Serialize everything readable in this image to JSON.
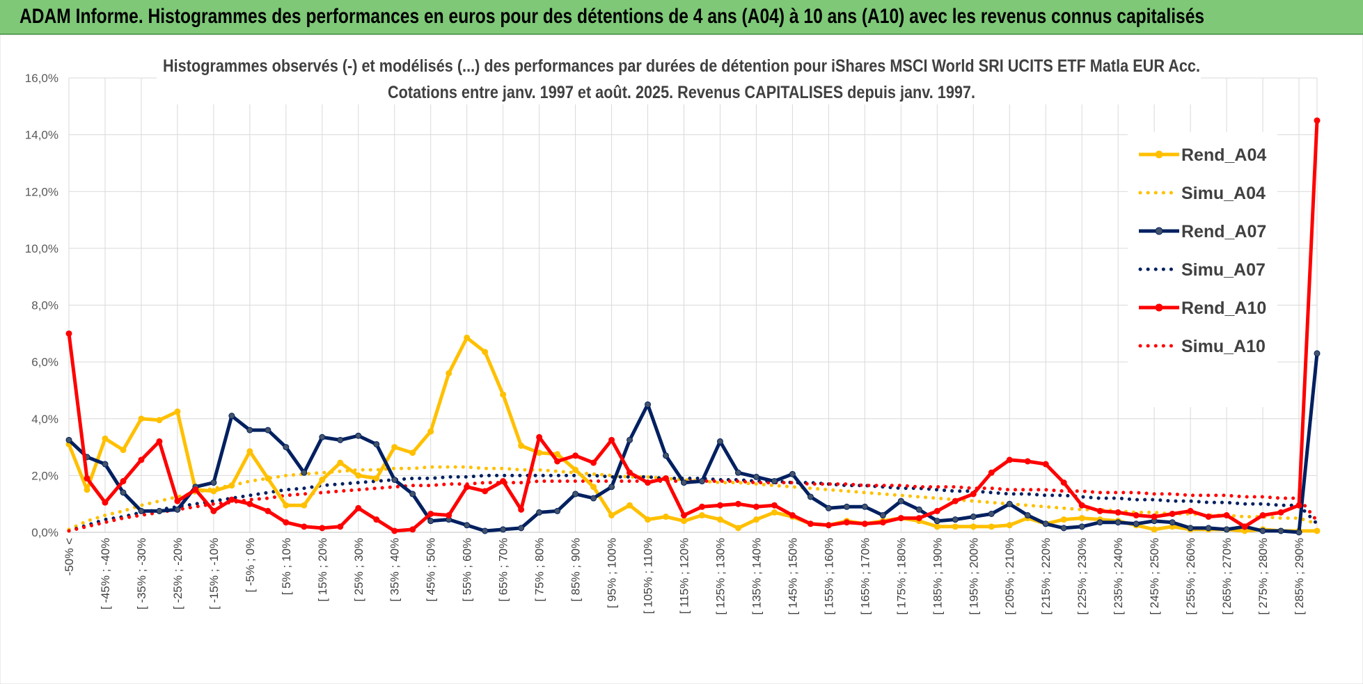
{
  "banner": {
    "title": "ADAM Informe. Histogrammes des performances en euros pour des détentions de 4 ans (A04) à 10 ans (A10) avec les revenus connus capitalisés"
  },
  "colors": {
    "banner": "#7ec878",
    "A04": "#ffc000",
    "A07": "#002060",
    "A10": "#ff0000",
    "grid": "#d9d9d9"
  },
  "chart_data": {
    "type": "line",
    "title": "Histogrammes observés (-) et modélisés (...) des performances par durées de détention pour iShares MSCI World SRI UCITS ETF Matla EUR Acc.",
    "subtitle": "Cotations entre janv. 1997 et août. 2025. Revenus CAPITALISES depuis janv. 1997.",
    "ylim": [
      0,
      16
    ],
    "yticks": [
      "0,0%",
      "2,0%",
      "4,0%",
      "6,0%",
      "8,0%",
      "10,0%",
      "12,0%",
      "14,0%",
      "16,0%"
    ],
    "grid": true,
    "legend_position": "right",
    "x_labels": [
      "-50% <",
      "[ -45% ; -40%",
      "[ -35% ; -30%",
      "[ -25% ; -20%",
      "[ -15% ; -10%",
      "[ -5% ; 0%",
      "[ 5% ; 10%",
      "[ 15% ; 20%",
      "[ 25% ; 30%",
      "[ 35% ; 40%",
      "[ 45% ; 50%",
      "[ 55% ; 60%",
      "[ 65% ; 70%",
      "[ 75% ; 80%",
      "[ 85% ; 90%",
      "[ 95% ; 100%",
      "[ 105% ; 110%",
      "[ 115% ; 120%",
      "[ 125% ; 130%",
      "[ 135% ; 140%",
      "[ 145% ; 150%",
      "[ 155% ; 160%",
      "[ 165% ; 170%",
      "[ 175% ; 180%",
      "[ 185% ; 190%",
      "[ 195% ; 200%",
      "[ 205% ; 210%",
      "[ 215% ; 220%",
      "[ 225% ; 230%",
      "[ 235% ; 240%",
      "[ 245% ; 250%",
      "[ 255% ; 260%",
      "[ 265% ; 270%",
      "[ 275% ; 280%",
      "[ 285% ; 290%"
    ],
    "series": [
      {
        "name": "Rend_A04",
        "style": "solid",
        "color": "#ffc000",
        "values": [
          3.1,
          1.5,
          3.3,
          2.9,
          4.0,
          3.95,
          4.25,
          1.5,
          1.45,
          1.65,
          2.85,
          1.9,
          0.95,
          0.95,
          1.85,
          2.45,
          2.0,
          1.9,
          3.0,
          2.8,
          3.55,
          5.6,
          6.85,
          6.35,
          4.85,
          3.05,
          2.8,
          2.75,
          2.2,
          1.6,
          0.6,
          0.95,
          0.45,
          0.55,
          0.4,
          0.6,
          0.45,
          0.15,
          0.45,
          0.7,
          0.55,
          0.3,
          0.25,
          0.4,
          0.3,
          0.4,
          0.5,
          0.4,
          0.2,
          0.2,
          0.2,
          0.2,
          0.25,
          0.5,
          0.3,
          0.45,
          0.5,
          0.45,
          0.4,
          0.25,
          0.1,
          0.2,
          0.1,
          0.1,
          0.1,
          0.05,
          0.1,
          0.05,
          0.05,
          0.05
        ]
      },
      {
        "name": "Simu_A04",
        "style": "dotted",
        "color": "#ffc000",
        "values": [
          0.1,
          0.4,
          0.6,
          0.75,
          0.95,
          1.1,
          1.25,
          1.4,
          1.55,
          1.65,
          1.8,
          1.9,
          2.0,
          2.05,
          2.1,
          2.15,
          2.2,
          2.2,
          2.25,
          2.25,
          2.3,
          2.3,
          2.3,
          2.25,
          2.25,
          2.2,
          2.2,
          2.15,
          2.1,
          2.05,
          2.0,
          1.95,
          1.95,
          1.9,
          1.85,
          1.8,
          1.75,
          1.75,
          1.7,
          1.65,
          1.6,
          1.55,
          1.5,
          1.45,
          1.4,
          1.35,
          1.3,
          1.25,
          1.2,
          1.15,
          1.1,
          1.05,
          1.0,
          0.95,
          0.9,
          0.85,
          0.8,
          0.8,
          0.75,
          0.7,
          0.7,
          0.65,
          0.65,
          0.6,
          0.6,
          0.55,
          0.55,
          0.5,
          0.5,
          0.3
        ]
      },
      {
        "name": "Rend_A07",
        "style": "solid",
        "color": "#002060",
        "values": [
          3.25,
          2.65,
          2.4,
          1.4,
          0.75,
          0.75,
          0.8,
          1.6,
          1.75,
          4.1,
          3.6,
          3.6,
          3.0,
          2.1,
          3.35,
          3.25,
          3.4,
          3.1,
          1.85,
          1.35,
          0.4,
          0.45,
          0.25,
          0.05,
          0.1,
          0.15,
          0.7,
          0.75,
          1.35,
          1.2,
          1.6,
          3.25,
          4.5,
          2.7,
          1.75,
          1.8,
          3.2,
          2.1,
          1.95,
          1.8,
          2.05,
          1.25,
          0.85,
          0.9,
          0.9,
          0.6,
          1.1,
          0.8,
          0.4,
          0.45,
          0.55,
          0.65,
          1.0,
          0.6,
          0.3,
          0.15,
          0.2,
          0.35,
          0.35,
          0.3,
          0.4,
          0.35,
          0.15,
          0.15,
          0.1,
          0.2,
          0.05,
          0.05,
          0.0,
          6.3
        ]
      },
      {
        "name": "Simu_A07",
        "style": "dotted",
        "color": "#002060",
        "values": [
          0.05,
          0.25,
          0.45,
          0.55,
          0.7,
          0.8,
          0.9,
          1.0,
          1.1,
          1.2,
          1.3,
          1.4,
          1.5,
          1.55,
          1.65,
          1.7,
          1.75,
          1.8,
          1.85,
          1.9,
          1.9,
          1.95,
          1.95,
          2.0,
          2.0,
          2.0,
          2.0,
          2.0,
          2.0,
          2.0,
          1.95,
          1.95,
          1.95,
          1.9,
          1.9,
          1.9,
          1.85,
          1.85,
          1.8,
          1.8,
          1.75,
          1.75,
          1.7,
          1.65,
          1.65,
          1.6,
          1.55,
          1.55,
          1.5,
          1.45,
          1.45,
          1.4,
          1.35,
          1.35,
          1.3,
          1.3,
          1.25,
          1.2,
          1.2,
          1.15,
          1.15,
          1.1,
          1.1,
          1.05,
          1.05,
          1.0,
          1.0,
          0.95,
          0.95,
          0.3
        ]
      },
      {
        "name": "Rend_A10",
        "style": "solid",
        "color": "#ff0000",
        "values": [
          7.0,
          1.9,
          1.05,
          1.8,
          2.55,
          3.2,
          1.1,
          1.5,
          0.75,
          1.15,
          1.0,
          0.75,
          0.35,
          0.2,
          0.15,
          0.2,
          0.85,
          0.45,
          0.05,
          0.1,
          0.65,
          0.6,
          1.6,
          1.45,
          1.8,
          0.8,
          3.35,
          2.5,
          2.7,
          2.45,
          3.25,
          2.1,
          1.75,
          1.9,
          0.6,
          0.9,
          0.95,
          1.0,
          0.9,
          0.95,
          0.6,
          0.3,
          0.25,
          0.35,
          0.3,
          0.35,
          0.5,
          0.5,
          0.75,
          1.1,
          1.35,
          2.1,
          2.55,
          2.5,
          2.4,
          1.75,
          0.95,
          0.75,
          0.7,
          0.6,
          0.55,
          0.65,
          0.75,
          0.55,
          0.6,
          0.2,
          0.6,
          0.7,
          0.95,
          14.5
        ]
      },
      {
        "name": "Simu_A10",
        "style": "dotted",
        "color": "#ff0000",
        "values": [
          0.05,
          0.2,
          0.35,
          0.5,
          0.6,
          0.7,
          0.8,
          0.9,
          1.0,
          1.05,
          1.15,
          1.2,
          1.3,
          1.35,
          1.4,
          1.45,
          1.5,
          1.55,
          1.6,
          1.65,
          1.65,
          1.7,
          1.7,
          1.75,
          1.75,
          1.75,
          1.8,
          1.8,
          1.8,
          1.8,
          1.8,
          1.8,
          1.8,
          1.8,
          1.8,
          1.8,
          1.8,
          1.8,
          1.75,
          1.75,
          1.75,
          1.7,
          1.7,
          1.7,
          1.65,
          1.65,
          1.65,
          1.6,
          1.6,
          1.6,
          1.55,
          1.55,
          1.5,
          1.5,
          1.5,
          1.45,
          1.45,
          1.4,
          1.4,
          1.4,
          1.35,
          1.35,
          1.3,
          1.3,
          1.3,
          1.25,
          1.25,
          1.2,
          1.2,
          0.4
        ]
      }
    ]
  }
}
